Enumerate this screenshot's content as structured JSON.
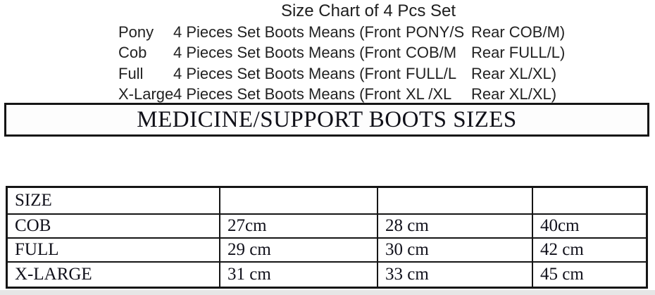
{
  "page": {
    "title": "Size Chart of 4 Pcs Set",
    "banner": "MEDICINE/SUPPORT BOOTS SIZES"
  },
  "size_lines": [
    {
      "label": "Pony",
      "phrase": "4 Pieces Set Boots Means (Front",
      "front_size": "PONY/S",
      "rear": "Rear COB/M)"
    },
    {
      "label": "Cob",
      "phrase": "4 Pieces Set Boots Means (Front",
      "front_size": "COB/M",
      "rear": "Rear FULL/L)"
    },
    {
      "label": "Full",
      "phrase": "4 Pieces Set Boots Means (Front",
      "front_size": "FULL/L",
      "rear": "Rear XL/XL)"
    },
    {
      "label": "X-Large",
      "phrase": "4 Pieces Set Boots Means (Front",
      "front_size": "XL /XL",
      "rear": "Rear XL/XL)"
    }
  ],
  "boots_table": {
    "header": [
      "SIZE",
      "",
      "",
      ""
    ],
    "rows": [
      [
        "COB",
        "27cm",
        "28 cm",
        "40cm"
      ],
      [
        "FULL",
        "29 cm",
        "30 cm",
        "42 cm"
      ],
      [
        "X-LARGE",
        "31 cm",
        "33 cm",
        "45 cm"
      ]
    ]
  }
}
